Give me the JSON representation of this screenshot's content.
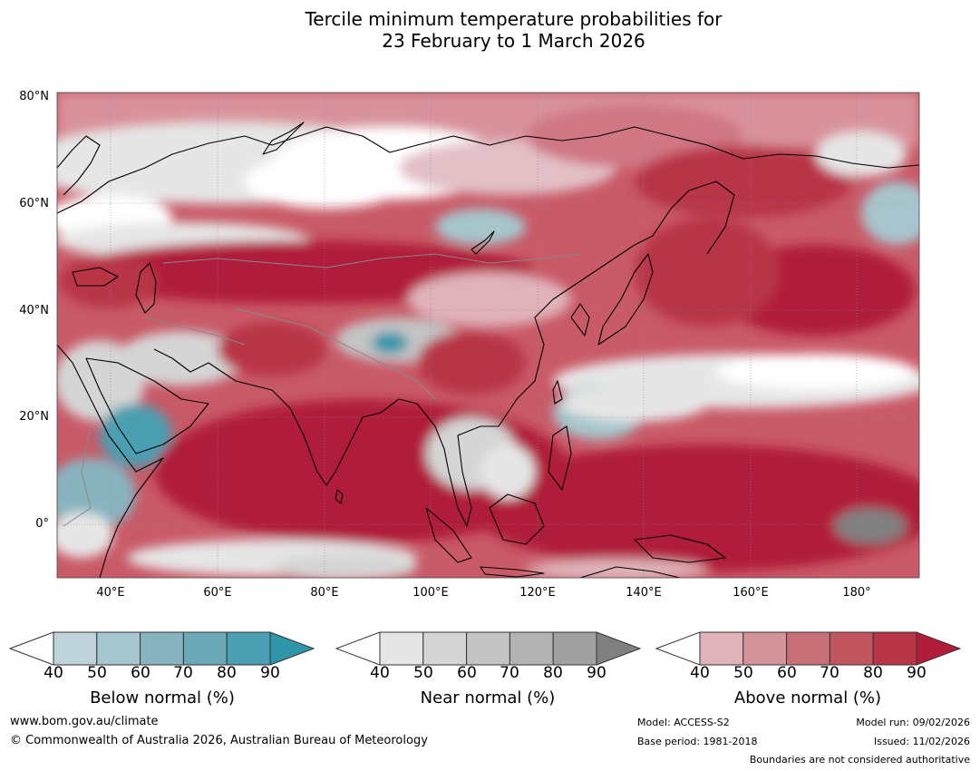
{
  "title_line1": "Tercile minimum temperature probabilities for",
  "title_line2": "23 February to 1 March 2026",
  "lat_labels": [
    "80°N",
    "60°N",
    "40°N",
    "20°N",
    "0°"
  ],
  "lon_labels": [
    "40°E",
    "60°E",
    "80°E",
    "100°E",
    "120°E",
    "140°E",
    "160°E",
    "180°"
  ],
  "colorbars": [
    {
      "title": "Below normal (%)",
      "ticks": [
        "40",
        "50",
        "60",
        "70",
        "80",
        "90"
      ],
      "colors": [
        "#bfd3da",
        "#a5c6cc",
        "#88b4c0",
        "#6ba9b7",
        "#4a9fb0",
        "#2f96aa"
      ]
    },
    {
      "title": "Near normal (%)",
      "ticks": [
        "40",
        "50",
        "60",
        "70",
        "80",
        "90"
      ],
      "colors": [
        "#e6e6e6",
        "#d5d5d5",
        "#c4c4c4",
        "#b3b3b3",
        "#a0a0a0",
        "#808080"
      ]
    },
    {
      "title": "Above normal (%)",
      "ticks": [
        "40",
        "50",
        "60",
        "70",
        "80",
        "90"
      ],
      "colors": [
        "#e0b3ba",
        "#d59499",
        "#c87078",
        "#c0555f",
        "#b83447",
        "#b01c3a"
      ]
    }
  ],
  "footer": {
    "website": "www.bom.gov.au/climate",
    "copyright": "© Commonwealth of Australia 2026, Australian Bureau of Meteorology",
    "model": "Model: ACCESS-S2",
    "base_period": "Base period: 1981-2018",
    "model_run": "Model run: 09/02/2026",
    "issued": "Issued: 11/02/2026",
    "disclaimer": "Boundaries are not considered authoritative"
  }
}
